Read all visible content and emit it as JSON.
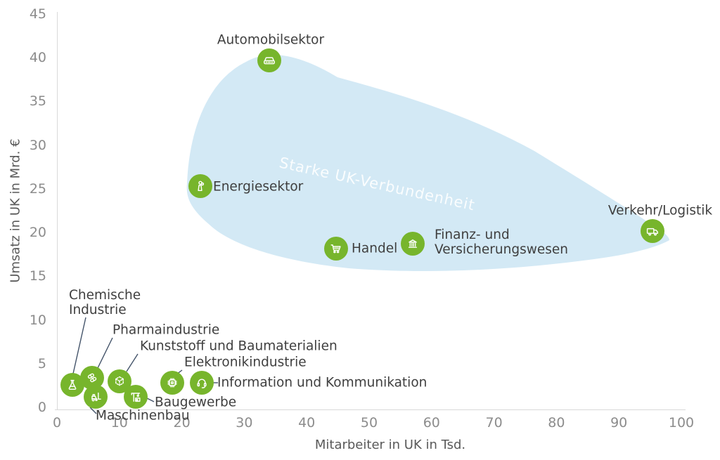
{
  "chart_data": {
    "type": "scatter",
    "title": "",
    "xlabel": "Mitarbeiter in UK in Tsd.",
    "ylabel": "Umsatz in UK in Mrd. €",
    "xlim": [
      0,
      100
    ],
    "ylim": [
      0,
      45
    ],
    "x_ticks": [
      0,
      10,
      20,
      30,
      40,
      50,
      60,
      70,
      80,
      90,
      100
    ],
    "y_ticks": [
      0,
      5,
      10,
      15,
      20,
      25,
      30,
      35,
      40,
      45
    ],
    "grid": false,
    "annotation": "Starke UK-Verbundenheit",
    "annotation_meaning": "Region umschliesst Sektoren mit starker UK-Verbundenheit",
    "points": [
      {
        "id": "automobilsektor",
        "label": "Automobilsektor",
        "label_lines": [
          "Automobilsektor"
        ],
        "icon": "car-icon",
        "x": 34,
        "y": 39.7,
        "in_blob": true
      },
      {
        "id": "energiesektor",
        "label": "Energiesektor",
        "label_lines": [
          "Energiesektor"
        ],
        "icon": "power-plant-icon",
        "x": 23,
        "y": 25.3,
        "in_blob": true
      },
      {
        "id": "handel",
        "label": "Handel",
        "label_lines": [
          "Handel"
        ],
        "icon": "shopping-cart-icon",
        "x": 44.7,
        "y": 18.2,
        "in_blob": true
      },
      {
        "id": "finanz",
        "label": "Finanz- und Versicherungswesen",
        "label_lines": [
          "Finanz- und",
          "Versicherungswesen"
        ],
        "icon": "bank-icon",
        "x": 57,
        "y": 18.7,
        "in_blob": true
      },
      {
        "id": "verkehr",
        "label": "Verkehr/Logistik",
        "label_lines": [
          "Verkehr/Logistik"
        ],
        "icon": "truck-icon",
        "x": 95.4,
        "y": 20.2,
        "in_blob": true
      },
      {
        "id": "chemische",
        "label": "Chemische Industrie",
        "label_lines": [
          "Chemische",
          "Industrie"
        ],
        "icon": "flask-icon",
        "x": 2.5,
        "y": 2.6,
        "in_blob": false
      },
      {
        "id": "pharma",
        "label": "Pharmaindustrie",
        "label_lines": [
          "Pharmaindustrie"
        ],
        "icon": "pills-icon",
        "x": 5.6,
        "y": 3.4,
        "in_blob": false
      },
      {
        "id": "kunststoff",
        "label": "Kunststoff und Baumaterialien",
        "label_lines": [
          "Kunststoff und Baumaterialien"
        ],
        "icon": "cube-icon",
        "x": 10,
        "y": 3.0,
        "in_blob": false
      },
      {
        "id": "elektronik",
        "label": "Elektronikindustrie",
        "label_lines": [
          "Elektronikindustrie"
        ],
        "icon": "chip-icon",
        "x": 18.5,
        "y": 2.8,
        "in_blob": false
      },
      {
        "id": "information",
        "label": "Information und Kommunikation",
        "label_lines": [
          "Information und Kommunikation"
        ],
        "icon": "headset-icon",
        "x": 23.2,
        "y": 2.8,
        "in_blob": false
      },
      {
        "id": "baugewerbe",
        "label": "Baugewerbe",
        "label_lines": [
          "Baugewerbe"
        ],
        "icon": "crane-icon",
        "x": 12.6,
        "y": 1.2,
        "in_blob": false
      },
      {
        "id": "maschinenbau",
        "label": "Maschinenbau",
        "label_lines": [
          "Maschinenbau"
        ],
        "icon": "forklift-icon",
        "x": 6.2,
        "y": 1.2,
        "in_blob": false
      }
    ],
    "colors": {
      "bubble_green": "#77B52C",
      "blob_blue": "#D3E9F5",
      "annotation_text": "#FFFFFF",
      "label_text": "#3F3F3F",
      "tick_text": "#8C8C8C",
      "axis_title_text": "#595959",
      "axis_line": "#D9D9D9",
      "leader_line": "#44546A"
    }
  }
}
